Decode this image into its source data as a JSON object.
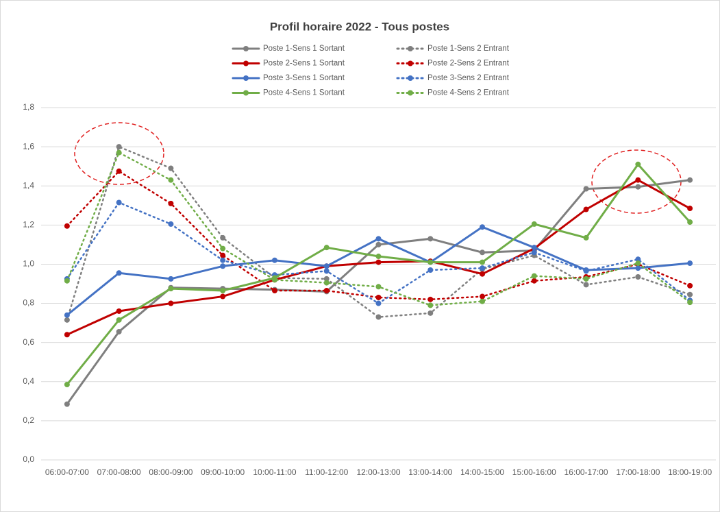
{
  "chart_data": {
    "type": "line",
    "title": "Profil horaire 2022 - Tous postes",
    "categories": [
      "06:00-07:00",
      "07:00-08:00",
      "08:00-09:00",
      "09:00-10:00",
      "10:00-11:00",
      "11:00-12:00",
      "12:00-13:00",
      "13:00-14:00",
      "14:00-15:00",
      "15:00-16:00",
      "16:00-17:00",
      "17:00-18:00",
      "18:00-19:00"
    ],
    "series": [
      {
        "name": "Poste 1-Sens 1 Sortant",
        "color": "#7f7f7f",
        "dash": "solid",
        "values": [
          0.285,
          0.655,
          0.88,
          0.875,
          0.87,
          0.86,
          1.1,
          1.13,
          1.06,
          1.07,
          1.385,
          1.395,
          1.43
        ]
      },
      {
        "name": "Poste 1-Sens 2 Entrant",
        "color": "#7f7f7f",
        "dash": "dot",
        "values": [
          0.715,
          1.6,
          1.49,
          1.135,
          0.93,
          0.925,
          0.73,
          0.75,
          0.975,
          1.045,
          0.895,
          0.935,
          0.845
        ]
      },
      {
        "name": "Poste 2-Sens 1 Sortant",
        "color": "#c00000",
        "dash": "solid",
        "values": [
          0.64,
          0.76,
          0.8,
          0.835,
          0.92,
          0.99,
          1.01,
          1.015,
          0.95,
          1.08,
          1.28,
          1.43,
          1.285
        ]
      },
      {
        "name": "Poste 2-Sens 2 Entrant",
        "color": "#c00000",
        "dash": "dot",
        "values": [
          1.195,
          1.475,
          1.31,
          1.045,
          0.865,
          0.865,
          0.83,
          0.82,
          0.835,
          0.915,
          0.935,
          1.0,
          0.89
        ]
      },
      {
        "name": "Poste 3-Sens 1 Sortant",
        "color": "#4472c4",
        "dash": "solid",
        "values": [
          0.74,
          0.955,
          0.925,
          0.99,
          1.02,
          0.99,
          1.13,
          1.01,
          1.19,
          1.085,
          0.97,
          0.98,
          1.005
        ]
      },
      {
        "name": "Poste 3-Sens 2 Entrant",
        "color": "#4472c4",
        "dash": "dot",
        "values": [
          0.925,
          1.315,
          1.205,
          1.02,
          0.945,
          0.965,
          0.8,
          0.97,
          0.98,
          1.06,
          0.965,
          1.025,
          0.815
        ]
      },
      {
        "name": "Poste 4-Sens 1 Sortant",
        "color": "#70ad47",
        "dash": "solid",
        "values": [
          0.385,
          0.715,
          0.875,
          0.865,
          0.93,
          1.085,
          1.04,
          1.01,
          1.01,
          1.205,
          1.135,
          1.51,
          1.215
        ]
      },
      {
        "name": "Poste 4-Sens 2 Entrant",
        "color": "#70ad47",
        "dash": "dot",
        "values": [
          0.915,
          1.57,
          1.43,
          1.08,
          0.92,
          0.905,
          0.885,
          0.79,
          0.81,
          0.94,
          0.925,
          1.005,
          0.805
        ]
      }
    ],
    "ylim": [
      0,
      1.8
    ],
    "yticks": [
      {
        "value": 0,
        "label": "0,0"
      },
      {
        "value": 0.2,
        "label": "0,2"
      },
      {
        "value": 0.4,
        "label": "0,4"
      },
      {
        "value": 0.6,
        "label": "0,6"
      },
      {
        "value": 0.8,
        "label": "0,8"
      },
      {
        "value": 1,
        "label": "1,0"
      },
      {
        "value": 1.2,
        "label": "1,2"
      },
      {
        "value": 1.4,
        "label": "1,4"
      },
      {
        "value": 1.6,
        "label": "1,6"
      },
      {
        "value": 1.8,
        "label": "1,8"
      }
    ],
    "grid": true
  }
}
